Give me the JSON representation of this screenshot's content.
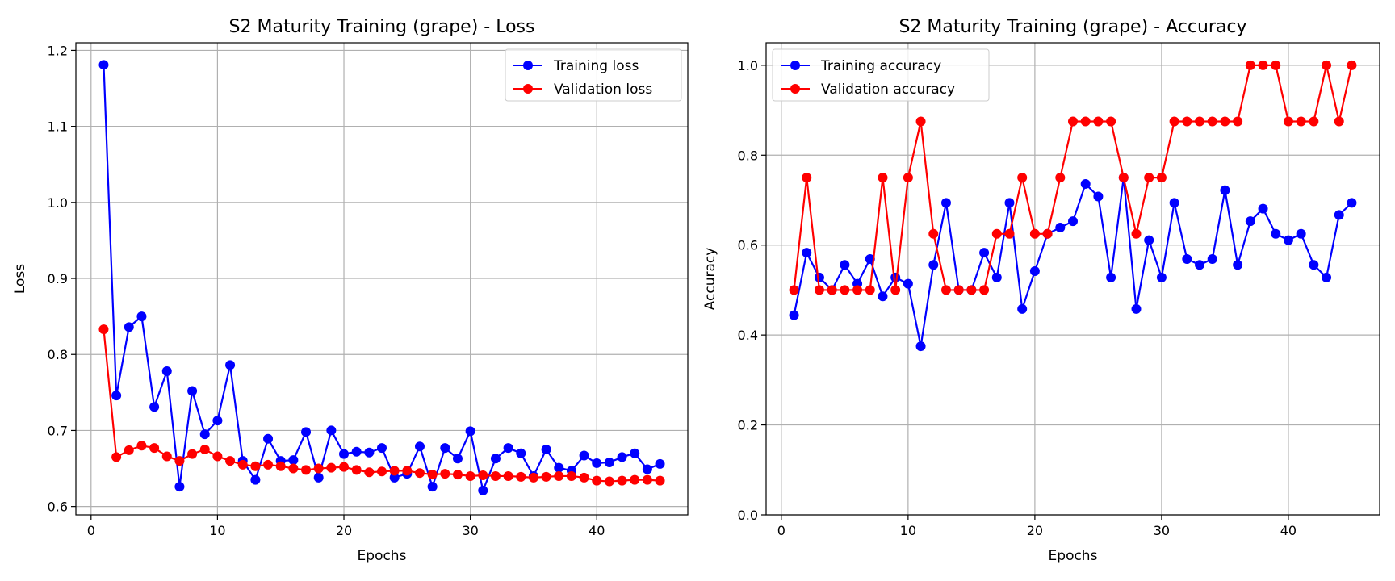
{
  "colors": {
    "training": "#0000ff",
    "validation": "#ff0000",
    "grid": "#b0b0b0"
  },
  "chart_data": [
    {
      "type": "line",
      "title": "S2 Maturity Training (grape) - Loss",
      "xlabel": "Epochs",
      "ylabel": "Loss",
      "xlim": [
        -1.2,
        47.2
      ],
      "ylim": [
        0.589,
        1.21
      ],
      "xticks": [
        0,
        10,
        20,
        30,
        40
      ],
      "yticks": [
        0.6,
        0.7,
        0.8,
        0.9,
        1.0,
        1.1,
        1.2
      ],
      "ytick_labels": [
        "0.6",
        "0.7",
        "0.8",
        "0.9",
        "1.0",
        "1.1",
        "1.2"
      ],
      "grid": true,
      "legend_position": "top-right",
      "x": [
        1,
        2,
        3,
        4,
        5,
        6,
        7,
        8,
        9,
        10,
        11,
        12,
        13,
        14,
        15,
        16,
        17,
        18,
        19,
        20,
        21,
        22,
        23,
        24,
        25,
        26,
        27,
        28,
        29,
        30,
        31,
        32,
        33,
        34,
        35,
        36,
        37,
        38,
        39,
        40,
        41,
        42,
        43,
        44,
        45
      ],
      "series": [
        {
          "name": "Training loss",
          "color": "#0000ff",
          "values": [
            1.181,
            0.746,
            0.836,
            0.85,
            0.731,
            0.778,
            0.626,
            0.752,
            0.695,
            0.713,
            0.786,
            0.66,
            0.635,
            0.689,
            0.66,
            0.661,
            0.698,
            0.638,
            0.7,
            0.669,
            0.672,
            0.671,
            0.677,
            0.638,
            0.643,
            0.679,
            0.626,
            0.677,
            0.663,
            0.699,
            0.621,
            0.663,
            0.677,
            0.67,
            0.64,
            0.675,
            0.651,
            0.647,
            0.667,
            0.657,
            0.658,
            0.665,
            0.67,
            0.649,
            0.656
          ]
        },
        {
          "name": "Validation loss",
          "color": "#ff0000",
          "values": [
            0.833,
            0.665,
            0.674,
            0.68,
            0.677,
            0.666,
            0.66,
            0.669,
            0.675,
            0.666,
            0.66,
            0.655,
            0.653,
            0.655,
            0.653,
            0.65,
            0.648,
            0.65,
            0.651,
            0.652,
            0.648,
            0.645,
            0.646,
            0.647,
            0.647,
            0.644,
            0.642,
            0.643,
            0.642,
            0.64,
            0.641,
            0.64,
            0.64,
            0.639,
            0.638,
            0.639,
            0.64,
            0.64,
            0.638,
            0.634,
            0.633,
            0.634,
            0.635,
            0.635,
            0.634
          ]
        }
      ]
    },
    {
      "type": "line",
      "title": "S2 Maturity Training (grape) - Accuracy",
      "xlabel": "Epochs",
      "ylabel": "Accuracy",
      "xlim": [
        -1.2,
        47.2
      ],
      "ylim": [
        0.0,
        1.05
      ],
      "xticks": [
        0,
        10,
        20,
        30,
        40
      ],
      "yticks": [
        0.0,
        0.2,
        0.4,
        0.6,
        0.8,
        1.0
      ],
      "ytick_labels": [
        "0.0",
        "0.2",
        "0.4",
        "0.6",
        "0.8",
        "1.0"
      ],
      "grid": true,
      "legend_position": "top-left",
      "x": [
        1,
        2,
        3,
        4,
        5,
        6,
        7,
        8,
        9,
        10,
        11,
        12,
        13,
        14,
        15,
        16,
        17,
        18,
        19,
        20,
        21,
        22,
        23,
        24,
        25,
        26,
        27,
        28,
        29,
        30,
        31,
        32,
        33,
        34,
        35,
        36,
        37,
        38,
        39,
        40,
        41,
        42,
        43,
        44,
        45
      ],
      "series": [
        {
          "name": "Training accuracy",
          "color": "#0000ff",
          "values": [
            0.444,
            0.583,
            0.528,
            0.5,
            0.556,
            0.514,
            0.569,
            0.486,
            0.528,
            0.514,
            0.375,
            0.556,
            0.694,
            0.5,
            0.5,
            0.583,
            0.528,
            0.694,
            0.458,
            0.542,
            0.625,
            0.639,
            0.653,
            0.736,
            0.708,
            0.528,
            0.75,
            0.458,
            0.611,
            0.528,
            0.694,
            0.569,
            0.556,
            0.569,
            0.722,
            0.556,
            0.653,
            0.681,
            0.625,
            0.611,
            0.625,
            0.556,
            0.528,
            0.667,
            0.694
          ]
        },
        {
          "name": "Validation accuracy",
          "color": "#ff0000",
          "values": [
            0.5,
            0.75,
            0.5,
            0.5,
            0.5,
            0.5,
            0.5,
            0.75,
            0.5,
            0.75,
            0.875,
            0.625,
            0.5,
            0.5,
            0.5,
            0.5,
            0.625,
            0.625,
            0.75,
            0.625,
            0.625,
            0.75,
            0.875,
            0.875,
            0.875,
            0.875,
            0.75,
            0.625,
            0.75,
            0.75,
            0.875,
            0.875,
            0.875,
            0.875,
            0.875,
            0.875,
            1.0,
            1.0,
            1.0,
            0.875,
            0.875,
            0.875,
            1.0,
            0.875,
            1.0
          ]
        }
      ]
    }
  ]
}
